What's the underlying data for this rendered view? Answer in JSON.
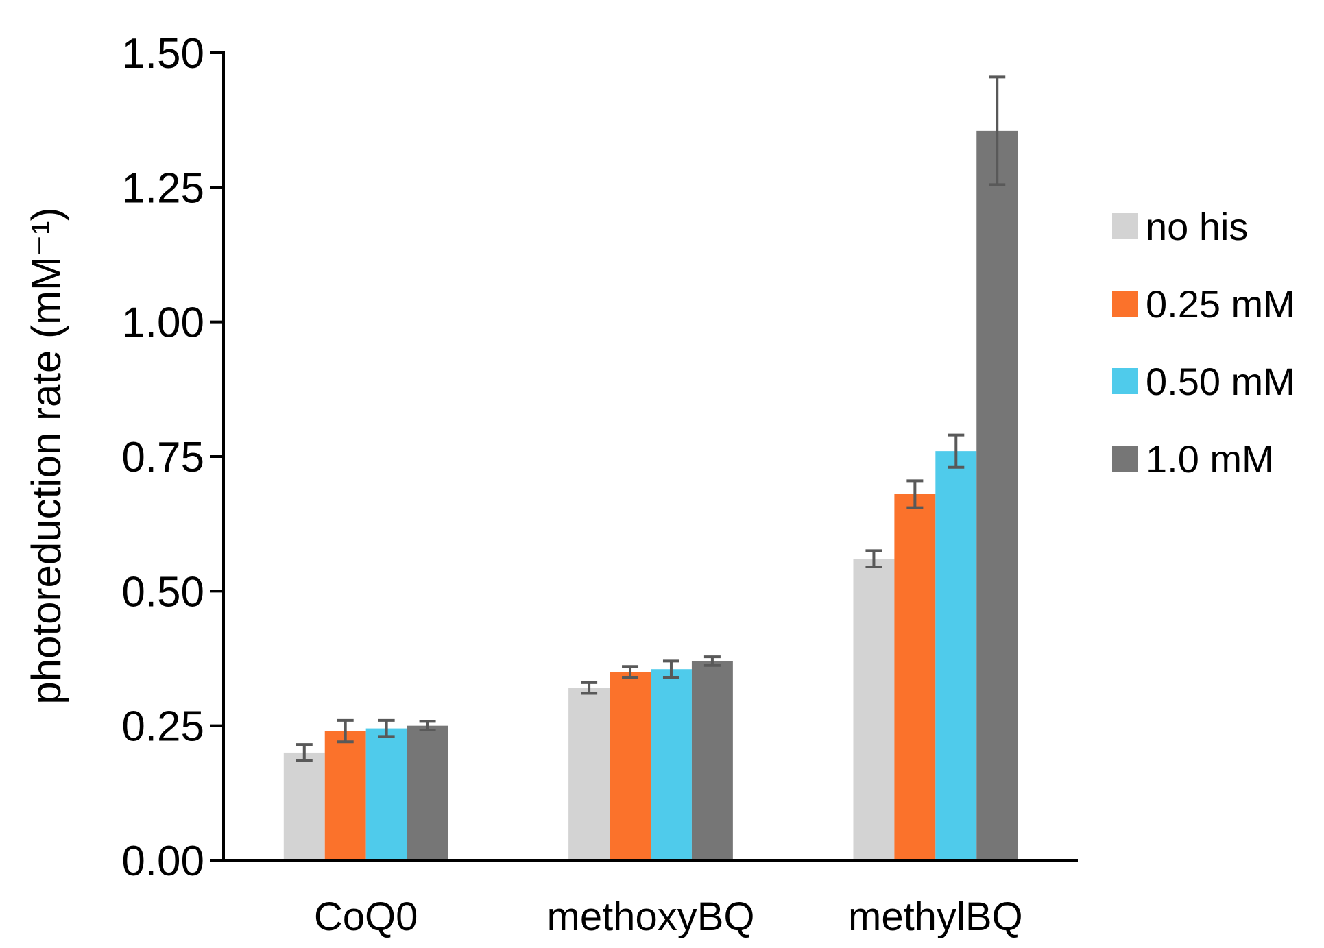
{
  "chart_data": {
    "type": "bar",
    "title": "",
    "xlabel": "",
    "ylabel": "photoreduction rate (mM⁻¹)",
    "ylim": [
      0,
      1.5
    ],
    "yticks": [
      0.0,
      0.25,
      0.5,
      0.75,
      1.0,
      1.25,
      1.5
    ],
    "ytick_labels": [
      "0.00",
      "0.25",
      "0.50",
      "0.75",
      "1.00",
      "1.25",
      "1.50"
    ],
    "categories": [
      "CoQ0",
      "methoxyBQ",
      "methylBQ"
    ],
    "legend_position": "right",
    "grid": false,
    "series": [
      {
        "name": "no his",
        "color": "#d3d3d3",
        "values": [
          0.2,
          0.32,
          0.56
        ],
        "errors": [
          0.015,
          0.01,
          0.015
        ]
      },
      {
        "name": "0.25 mM",
        "color": "#fb722b",
        "values": [
          0.24,
          0.35,
          0.68
        ],
        "errors": [
          0.02,
          0.01,
          0.025
        ]
      },
      {
        "name": "0.50 mM",
        "color": "#4fcbeb",
        "values": [
          0.245,
          0.355,
          0.76
        ],
        "errors": [
          0.015,
          0.015,
          0.03
        ]
      },
      {
        "name": "1.0 mM",
        "color": "#767676",
        "values": [
          0.25,
          0.37,
          1.355
        ],
        "errors": [
          0.008,
          0.008,
          0.1
        ]
      }
    ],
    "errorbar_color": "#595959",
    "axis_color": "#000000"
  }
}
